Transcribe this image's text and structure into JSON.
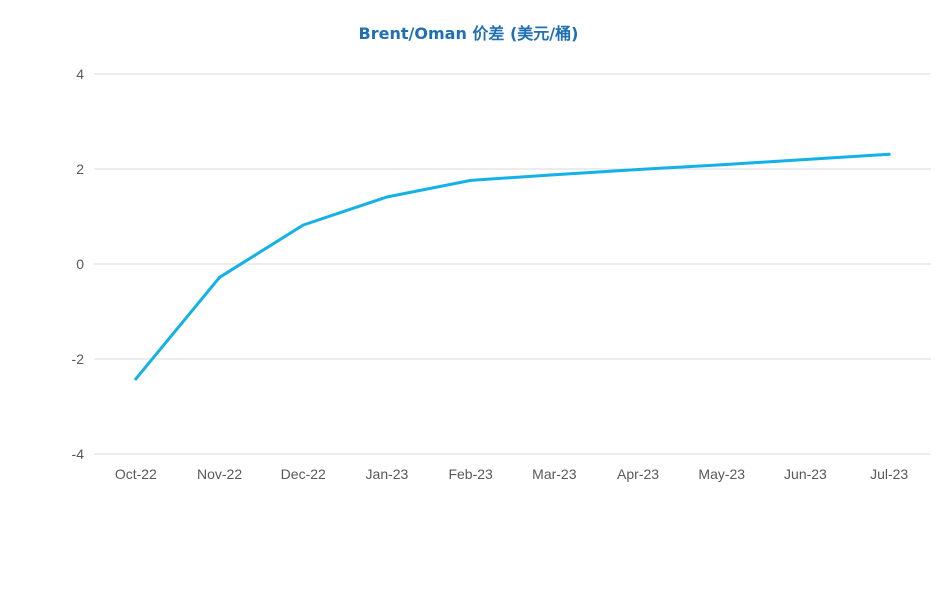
{
  "chart_data": {
    "type": "line",
    "title": "Brent/Oman 价差 (美元/桶)",
    "xlabel": "",
    "ylabel": "",
    "categories": [
      "Oct-22",
      "Nov-22",
      "Dec-22",
      "Jan-23",
      "Feb-23",
      "Mar-23",
      "Apr-23",
      "May-23",
      "Jun-23",
      "Jul-23"
    ],
    "series": [
      {
        "values": [
          -2.42,
          -0.28,
          0.82,
          1.41,
          1.76,
          1.88,
          1.99,
          2.09,
          2.2,
          2.31
        ],
        "color": "#14b1e7"
      }
    ],
    "ylim": [
      -4,
      4
    ],
    "yticks": [
      -4,
      -2,
      0,
      2,
      4
    ],
    "ytick_labels": [
      "-4",
      "-2",
      "0",
      "2",
      "4"
    ],
    "grid": true,
    "legend": "none"
  }
}
